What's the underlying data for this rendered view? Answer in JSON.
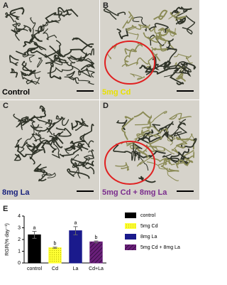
{
  "panels": [
    {
      "label": "A",
      "caption": "Control",
      "caption_color": "#000000"
    },
    {
      "label": "B",
      "caption": "5mg Cd",
      "caption_color": "#e8e000"
    },
    {
      "label": "C",
      "caption": "8mg La",
      "caption_color": "#1a237e"
    },
    {
      "label": "D",
      "caption": "5mg Cd + 8mg La",
      "caption_color": "#7b2d8e"
    }
  ],
  "chart_data": {
    "type": "bar",
    "label": "E",
    "y_label": "RGR(% day⁻¹)",
    "categories": [
      "control",
      "Cd",
      "La",
      "Cd+La"
    ],
    "values": [
      2.4,
      1.3,
      2.75,
      1.8
    ],
    "errors": [
      0.3,
      0.05,
      0.35,
      0.08
    ],
    "significance": [
      "a",
      "b",
      "a",
      "b"
    ],
    "colors": [
      "#000000",
      "#ffff33",
      "#1a1a8c",
      "#6a1f7a"
    ],
    "legend_labels": [
      "control",
      "5mg Cd",
      "8mg La",
      "5mg Cd + 8mg La"
    ],
    "ylim": [
      0,
      4
    ],
    "yticks": [
      0,
      1,
      2,
      3,
      4
    ]
  }
}
